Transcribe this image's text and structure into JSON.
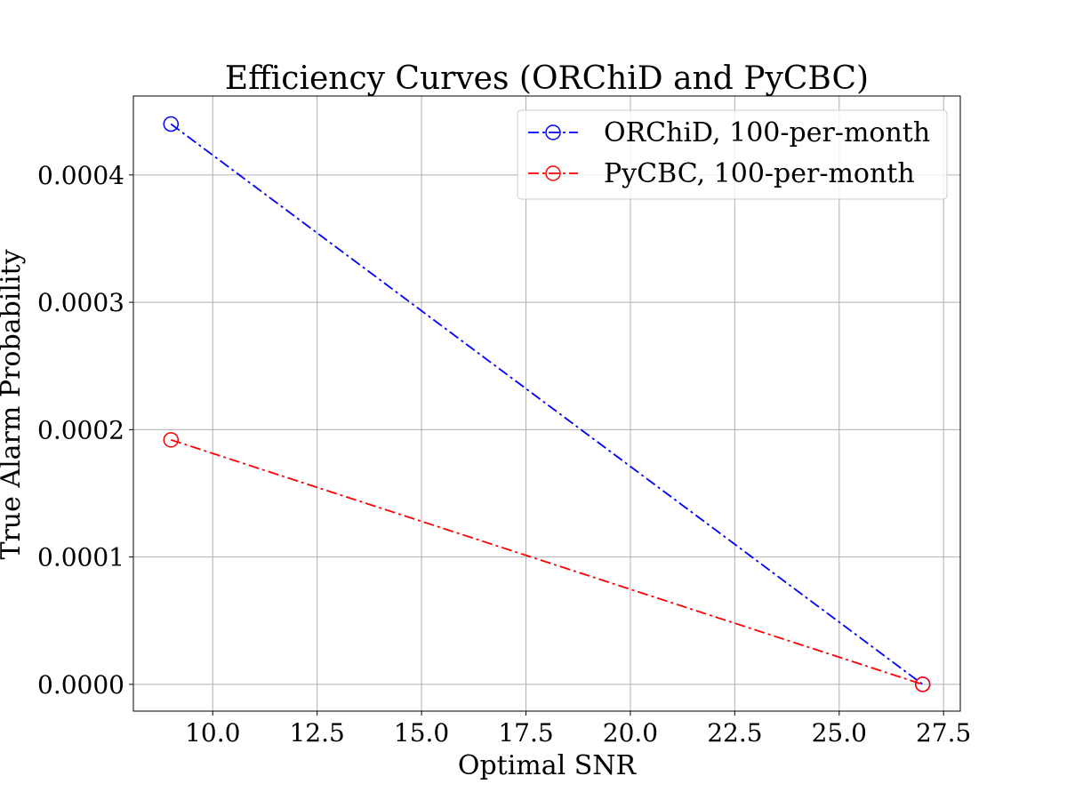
{
  "chart_data": {
    "type": "line",
    "title": "Efficiency Curves (ORChiD and PyCBC)",
    "xlabel": "Optimal SNR",
    "ylabel": "True Alarm Probability",
    "xlim": [
      8.1,
      27.9
    ],
    "ylim": [
      -2.1e-05,
      0.000462
    ],
    "xticks": [
      10.0,
      12.5,
      15.0,
      17.5,
      20.0,
      22.5,
      25.0,
      27.5
    ],
    "xtick_labels": [
      "10.0",
      "12.5",
      "15.0",
      "17.5",
      "20.0",
      "22.5",
      "25.0",
      "27.5"
    ],
    "yticks": [
      0.0,
      0.0001,
      0.0002,
      0.0003,
      0.0004
    ],
    "ytick_labels": [
      "0.0000",
      "0.0001",
      "0.0002",
      "0.0003",
      "0.0004"
    ],
    "grid": true,
    "legend_position": "upper right",
    "series": [
      {
        "name": "ORChiD, 100-per-month",
        "color": "#0000ff",
        "line_style": "dashdot",
        "marker": "open-circle",
        "x": [
          9.0,
          27.0
        ],
        "y": [
          0.00044,
          0.0
        ]
      },
      {
        "name": "PyCBC, 100-per-month",
        "color": "#ff0000",
        "line_style": "dashdot",
        "marker": "open-circle",
        "x": [
          9.0,
          27.0
        ],
        "y": [
          0.000192,
          0.0
        ]
      }
    ]
  }
}
